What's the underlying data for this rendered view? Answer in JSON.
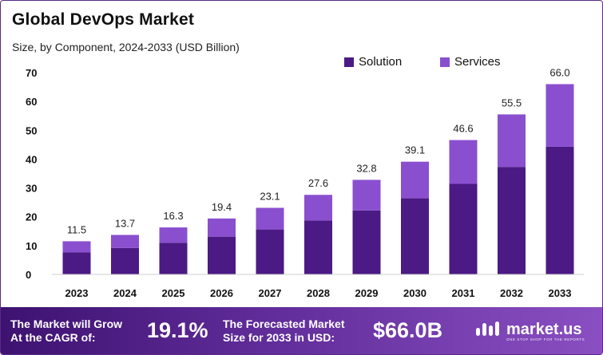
{
  "title": "Global DevOps Market",
  "subtitle": "Size, by Component, 2024-2033 (USD Billion)",
  "legend": {
    "solution": "Solution",
    "services": "Services"
  },
  "colors": {
    "solution": "#4b1a84",
    "services": "#8a4fcf",
    "accent": "#5b2a86"
  },
  "chart_data": {
    "type": "bar",
    "stacked": true,
    "categories": [
      "2023",
      "2024",
      "2025",
      "2026",
      "2027",
      "2028",
      "2029",
      "2030",
      "2031",
      "2032",
      "2033"
    ],
    "series": [
      {
        "name": "Solution",
        "values": [
          7.7,
          9.2,
          11.0,
          13.1,
          15.6,
          18.7,
          22.2,
          26.4,
          31.4,
          37.3,
          44.3
        ]
      },
      {
        "name": "Services",
        "values": [
          3.8,
          4.5,
          5.3,
          6.3,
          7.5,
          8.9,
          10.6,
          12.7,
          15.2,
          18.2,
          21.7
        ]
      }
    ],
    "totals": [
      "11.5",
      "13.7",
      "16.3",
      "19.4",
      "23.1",
      "27.6",
      "32.8",
      "39.1",
      "46.6",
      "55.5",
      "66.0"
    ],
    "yticks": [
      "0",
      "10",
      "20",
      "30",
      "40",
      "50",
      "60",
      "70"
    ],
    "ylim": [
      0,
      70
    ],
    "grid": false,
    "legend_position": "top-right"
  },
  "footer": {
    "cagr_text_line1": "The Market will Grow",
    "cagr_text_line2": "At the CAGR of:",
    "cagr_value": "19.1%",
    "forecast_text_line1": "The Forecasted Market",
    "forecast_text_line2": "Size for 2033 in USD:",
    "forecast_value": "$66.0B",
    "brand": "market.us",
    "brand_tagline": "ONE STOP SHOP FOR THE REPORTS"
  }
}
